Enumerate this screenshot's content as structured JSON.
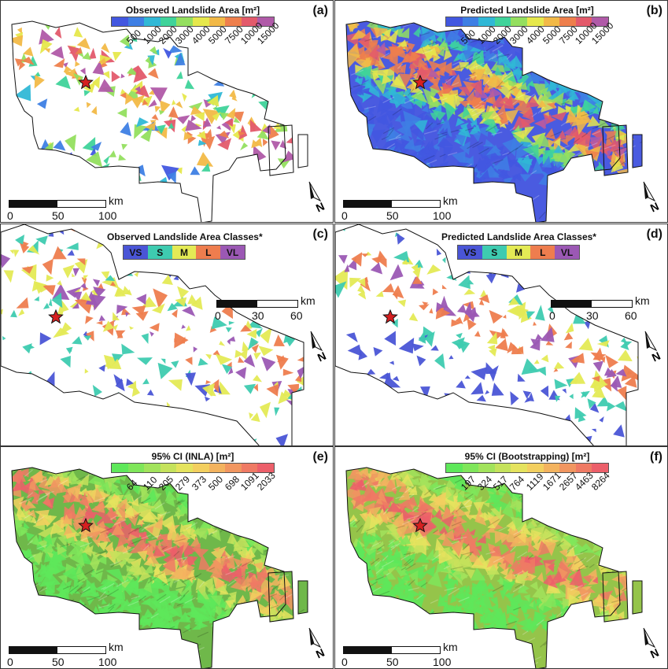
{
  "panels": [
    {
      "letter": "(a)",
      "title": "Observed Landslide Area [m²]",
      "legend": "continuous",
      "ticks": [
        "500",
        "1000",
        "2000",
        "3000",
        "4000",
        "5000",
        "7500",
        "10000",
        "15000"
      ],
      "palette": [
        "#4257e0",
        "#3e7fe4",
        "#30b8d6",
        "#3fd39a",
        "#94df5f",
        "#e6e84c",
        "#f2b947",
        "#ee7f4c",
        "#e35a6b",
        "#b05aa8"
      ],
      "scale": {
        "labels": [
          "0",
          "50",
          "100"
        ],
        "unit": "km"
      },
      "star": true,
      "fill_style": "observed"
    },
    {
      "letter": "(b)",
      "title": "Predicted Landslide Area [m²]",
      "legend": "continuous",
      "ticks": [
        "500",
        "1000",
        "2000",
        "3000",
        "4000",
        "5000",
        "7500",
        "10000",
        "15000"
      ],
      "palette": [
        "#4257e0",
        "#3e7fe4",
        "#30b8d6",
        "#3fd39a",
        "#94df5f",
        "#e6e84c",
        "#f2b947",
        "#ee7f4c",
        "#e35a6b",
        "#b05aa8"
      ],
      "scale": {
        "labels": [
          "0",
          "50",
          "100"
        ],
        "unit": "km"
      },
      "star": true,
      "fill_style": "predicted"
    },
    {
      "letter": "(c)",
      "title": "Observed Landslide Area Classes*",
      "legend": "classes",
      "classes": [
        {
          "label": "VS",
          "color": "#4a55d6"
        },
        {
          "label": "S",
          "color": "#3ecbb0"
        },
        {
          "label": "M",
          "color": "#e4ea55"
        },
        {
          "label": "L",
          "color": "#ee7d4e"
        },
        {
          "label": "VL",
          "color": "#9b58b4"
        }
      ],
      "scale": {
        "labels": [
          "0",
          "30",
          "60"
        ],
        "unit": "km"
      },
      "star": true,
      "fill_style": "class_observed"
    },
    {
      "letter": "(d)",
      "title": "Predicted Landslide Area Classes*",
      "legend": "classes",
      "classes": [
        {
          "label": "VS",
          "color": "#4a55d6"
        },
        {
          "label": "S",
          "color": "#3ecbb0"
        },
        {
          "label": "M",
          "color": "#e4ea55"
        },
        {
          "label": "L",
          "color": "#ee7d4e"
        },
        {
          "label": "VL",
          "color": "#9b58b4"
        }
      ],
      "scale": {
        "labels": [
          "0",
          "30",
          "60"
        ],
        "unit": "km"
      },
      "star": true,
      "fill_style": "class_predicted"
    },
    {
      "letter": "(e)",
      "title": "95% CI (INLA) [m²]",
      "legend": "continuous",
      "ticks": [
        "64",
        "110",
        "205",
        "279",
        "373",
        "500",
        "698",
        "1091",
        "2033"
      ],
      "palette": [
        "#5ee85a",
        "#7fe65a",
        "#a2e35c",
        "#c5e25c",
        "#e5e35e",
        "#f3cf5f",
        "#f3b35f",
        "#f19660",
        "#ef7a64",
        "#ec5f6a"
      ],
      "scale": {
        "labels": [
          "0",
          "50",
          "100"
        ],
        "unit": "km"
      },
      "star": true,
      "fill_style": "ci_inla"
    },
    {
      "letter": "(f)",
      "title": "95% CI (Bootstrapping) [m²]",
      "legend": "continuous",
      "ticks": [
        "197",
        "324",
        "517",
        "764",
        "1119",
        "1671",
        "2657",
        "4463",
        "8264"
      ],
      "palette": [
        "#5ee85a",
        "#7fe65a",
        "#a2e35c",
        "#c5e25c",
        "#e5e35e",
        "#f3cf5f",
        "#f3b35f",
        "#f19660",
        "#ef7a64",
        "#ec5f6a"
      ],
      "scale": {
        "labels": [
          "0",
          "50",
          "100"
        ],
        "unit": "km"
      },
      "star": true,
      "fill_style": "ci_boot"
    }
  ],
  "north_label": "N"
}
